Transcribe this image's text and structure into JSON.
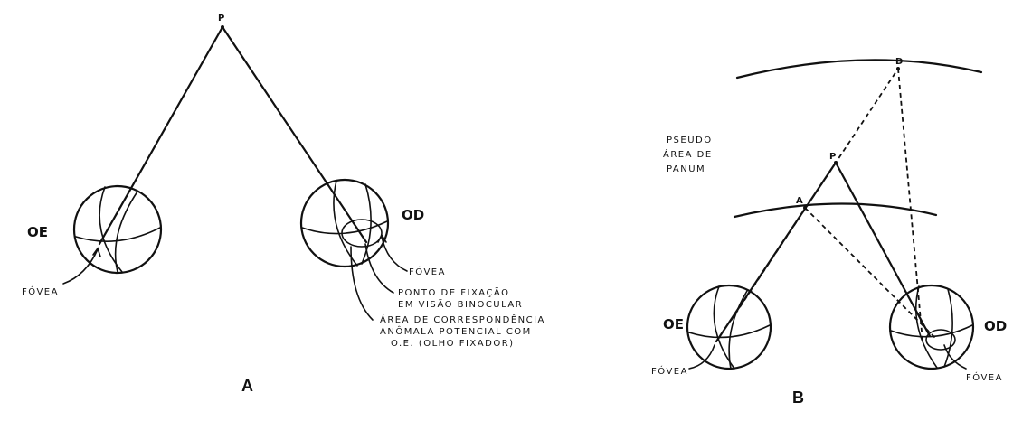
{
  "panel_a": {
    "caption": "A",
    "point_p": "P",
    "left_eye": "OE",
    "right_eye": "OD",
    "fovea_left": "FÓVEA",
    "fovea_right": "FÓVEA",
    "fixation_line1": "PONTO DE FIXAÇÃO",
    "fixation_line2": "EM VISÃO BINOCULAR",
    "area_line1": "ÁREA DE CORRESPONDÊNCIA",
    "area_line2": "ANÔMALA POTENCIAL COM",
    "area_line3": "O.E. (OLHO FIXADOR)"
  },
  "panel_b": {
    "caption": "B",
    "pseudo_line1": "PSEUDO",
    "pseudo_line2": "ÁREA DE",
    "pseudo_line3": "PANUM",
    "point_d": "D",
    "point_p": "P",
    "point_a": "A",
    "left_eye": "OE",
    "right_eye": "OD",
    "fovea_left": "FÓVEA",
    "fovea_right": "FÓVEA"
  }
}
